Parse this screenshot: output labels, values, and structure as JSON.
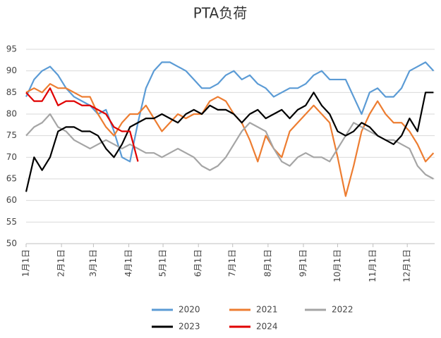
{
  "chart_data": {
    "type": "line",
    "title": "PTA负荷",
    "x": [
      0,
      7,
      14,
      21,
      28,
      35,
      42,
      49,
      56,
      63,
      70,
      77,
      84,
      91,
      98,
      105,
      112,
      119,
      126,
      133,
      140,
      147,
      154,
      161,
      168,
      175,
      182,
      189,
      196,
      203,
      210,
      217,
      224,
      231,
      238,
      245,
      252,
      259,
      266,
      273,
      280,
      287,
      294,
      301,
      308,
      315,
      322,
      329,
      336,
      343,
      350,
      357
    ],
    "xlim": [
      0,
      358
    ],
    "xticks": [
      {
        "value": 0,
        "label": "1月1日"
      },
      {
        "value": 31,
        "label": "2月1日"
      },
      {
        "value": 59,
        "label": "3月1日"
      },
      {
        "value": 90,
        "label": "4月1日"
      },
      {
        "value": 120,
        "label": "5月1日"
      },
      {
        "value": 151,
        "label": "6月1日"
      },
      {
        "value": 181,
        "label": "7月1日"
      },
      {
        "value": 212,
        "label": "8月1日"
      },
      {
        "value": 243,
        "label": "9月1日"
      },
      {
        "value": 273,
        "label": "10月1日"
      },
      {
        "value": 304,
        "label": "11月1日"
      },
      {
        "value": 334,
        "label": "12月1日"
      }
    ],
    "ylim": [
      50,
      95
    ],
    "yticks": [
      50,
      55,
      60,
      65,
      70,
      75,
      80,
      85,
      90,
      95
    ],
    "grid": true,
    "legend": "bottom",
    "series": [
      {
        "name": "2020",
        "color": "#5b9bd5",
        "values": [
          84,
          88,
          90,
          91,
          89,
          86,
          84,
          83,
          82,
          80,
          81,
          76,
          70,
          69,
          78,
          86,
          90,
          92,
          92,
          91,
          90,
          88,
          86,
          86,
          87,
          89,
          90,
          88,
          89,
          87,
          86,
          84,
          85,
          86,
          86,
          87,
          89,
          90,
          88,
          88,
          88,
          84,
          80,
          85,
          86,
          84,
          84,
          86,
          90,
          91,
          92,
          90
        ]
      },
      {
        "name": "2021",
        "color": "#ed7d31",
        "values": [
          85,
          86,
          85,
          87,
          86,
          86,
          85,
          84,
          84,
          80,
          77,
          75,
          78,
          80,
          80,
          82,
          79,
          76,
          78,
          80,
          79,
          80,
          80,
          83,
          84,
          83,
          80,
          78,
          74,
          69,
          75,
          72,
          70,
          76,
          78,
          80,
          82,
          80,
          78,
          70,
          61,
          68,
          76,
          80,
          83,
          80,
          78,
          78,
          76,
          73,
          69,
          71
        ]
      },
      {
        "name": "2022",
        "color": "#a5a5a5",
        "values": [
          75,
          77,
          78,
          80,
          77,
          76,
          74,
          73,
          72,
          73,
          74,
          73,
          72,
          73,
          72,
          71,
          71,
          70,
          71,
          72,
          71,
          70,
          68,
          67,
          68,
          70,
          73,
          76,
          78,
          77,
          76,
          72,
          69,
          68,
          70,
          71,
          70,
          70,
          69,
          72,
          75,
          78,
          77,
          76,
          75,
          74,
          74,
          73,
          72,
          68,
          66,
          65
        ]
      },
      {
        "name": "2023",
        "color": "#000000",
        "values": [
          62,
          70,
          67,
          70,
          76,
          77,
          77,
          76,
          76,
          75,
          72,
          70,
          73,
          77,
          78,
          79,
          79,
          80,
          79,
          78,
          80,
          81,
          80,
          82,
          81,
          81,
          80,
          78,
          80,
          81,
          79,
          80,
          81,
          79,
          81,
          82,
          85,
          82,
          80,
          76,
          75,
          76,
          78,
          77,
          75,
          74,
          73,
          75,
          79,
          76,
          85,
          85
        ]
      },
      {
        "name": "2024",
        "color": "#e00000",
        "values": [
          85,
          83,
          83,
          86,
          82,
          83,
          83,
          82,
          82,
          81,
          80,
          77,
          76,
          76,
          69,
          null,
          null,
          null,
          null,
          null,
          null,
          null,
          null,
          null,
          null,
          null,
          null,
          null,
          null,
          null,
          null,
          null,
          null,
          null,
          null,
          null,
          null,
          null,
          null,
          null,
          null,
          null,
          null,
          null,
          null,
          null,
          null,
          null,
          null,
          null,
          null,
          null
        ]
      }
    ]
  }
}
